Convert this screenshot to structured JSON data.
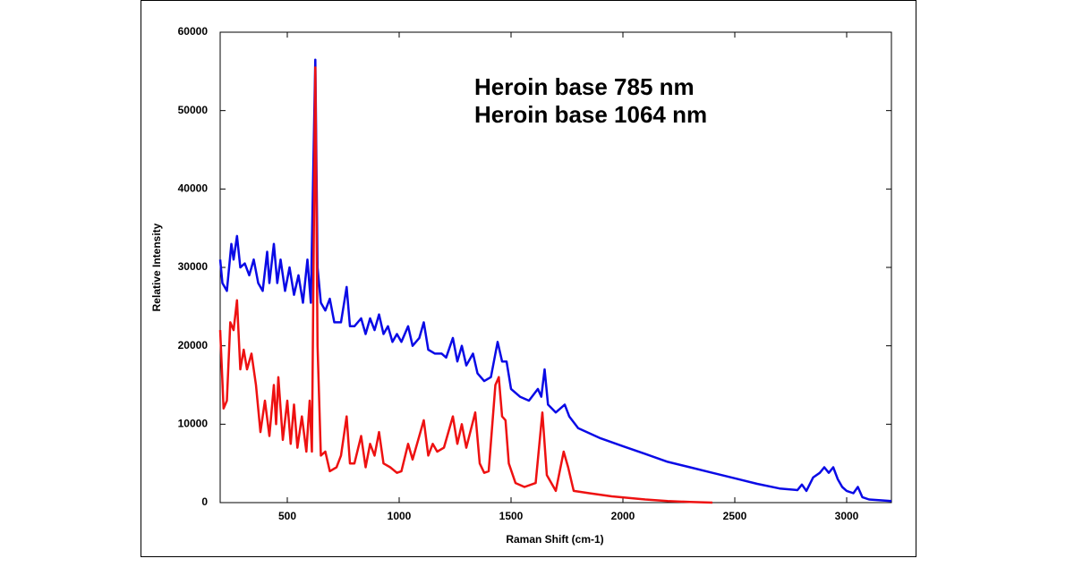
{
  "chart_data": {
    "type": "line",
    "xlabel": "Raman Shift (cm-1)",
    "ylabel": "Relative Intensity",
    "xlim": [
      200,
      3200
    ],
    "ylim": [
      0,
      60000
    ],
    "xticks": [
      500,
      1000,
      1500,
      2000,
      2500,
      3000
    ],
    "yticks": [
      0,
      10000,
      20000,
      30000,
      40000,
      50000,
      60000
    ],
    "grid": false,
    "series": [
      {
        "name": "Heroin base 785 nm",
        "color": "#0a0ae6",
        "x": [
          200,
          210,
          230,
          250,
          260,
          275,
          290,
          310,
          330,
          350,
          370,
          390,
          410,
          420,
          440,
          455,
          470,
          490,
          510,
          530,
          550,
          570,
          590,
          605,
          625,
          635,
          650,
          670,
          690,
          710,
          740,
          765,
          780,
          800,
          830,
          850,
          870,
          890,
          910,
          930,
          950,
          970,
          990,
          1010,
          1040,
          1060,
          1090,
          1110,
          1130,
          1160,
          1190,
          1210,
          1240,
          1260,
          1280,
          1300,
          1330,
          1350,
          1380,
          1410,
          1440,
          1460,
          1480,
          1500,
          1540,
          1580,
          1620,
          1635,
          1650,
          1665,
          1700,
          1740,
          1760,
          1800,
          1900,
          2000,
          2100,
          2200,
          2300,
          2400,
          2500,
          2600,
          2700,
          2780,
          2800,
          2820,
          2850,
          2880,
          2900,
          2920,
          2940,
          2960,
          2980,
          3000,
          3030,
          3050,
          3070,
          3100,
          3150,
          3200
        ],
        "values": [
          31000,
          28000,
          27000,
          33000,
          31000,
          34000,
          30000,
          30500,
          29000,
          31000,
          28000,
          27000,
          32000,
          28000,
          33000,
          28000,
          31000,
          27000,
          30000,
          26500,
          29000,
          25500,
          31000,
          25500,
          56500,
          30000,
          25500,
          24500,
          26000,
          23000,
          23000,
          27500,
          22500,
          22500,
          23500,
          21500,
          23500,
          22000,
          24000,
          21500,
          22500,
          20500,
          21500,
          20500,
          22500,
          20000,
          21000,
          23000,
          19500,
          19000,
          19000,
          18500,
          21000,
          18000,
          20000,
          17500,
          19000,
          16500,
          15500,
          16000,
          20500,
          18000,
          18000,
          14500,
          13500,
          13000,
          14500,
          13500,
          17000,
          12500,
          11500,
          12500,
          11000,
          9500,
          8200,
          7200,
          6200,
          5200,
          4500,
          3800,
          3100,
          2400,
          1800,
          1600,
          2300,
          1500,
          3200,
          3800,
          4500,
          3800,
          4500,
          3000,
          2000,
          1500,
          1200,
          2000,
          700,
          400,
          300,
          200
        ]
      },
      {
        "name": "Heroin base 1064 nm",
        "color": "#ee1111",
        "x": [
          200,
          215,
          230,
          245,
          260,
          275,
          290,
          305,
          320,
          340,
          360,
          380,
          400,
          420,
          440,
          450,
          460,
          480,
          500,
          515,
          530,
          545,
          565,
          585,
          600,
          610,
          625,
          635,
          650,
          670,
          690,
          720,
          740,
          765,
          780,
          800,
          830,
          850,
          870,
          890,
          910,
          930,
          960,
          990,
          1010,
          1040,
          1060,
          1090,
          1110,
          1130,
          1150,
          1170,
          1200,
          1240,
          1260,
          1280,
          1300,
          1340,
          1360,
          1380,
          1400,
          1430,
          1445,
          1460,
          1475,
          1490,
          1520,
          1560,
          1610,
          1640,
          1660,
          1700,
          1735,
          1755,
          1780,
          1850,
          1950,
          2100,
          2200,
          2300,
          2400
        ],
        "values": [
          22000,
          12000,
          13000,
          23000,
          22000,
          25800,
          17000,
          19500,
          17000,
          19000,
          15000,
          9000,
          13000,
          8500,
          15000,
          10000,
          16000,
          8000,
          13000,
          7500,
          12500,
          7000,
          11000,
          6500,
          13000,
          6500,
          55500,
          20000,
          6000,
          6500,
          4000,
          4500,
          6000,
          11000,
          5000,
          5000,
          8500,
          4500,
          7500,
          6000,
          9000,
          5000,
          4500,
          3800,
          4000,
          7500,
          5500,
          8500,
          10500,
          6000,
          7500,
          6500,
          7000,
          11000,
          7500,
          10000,
          7000,
          11500,
          5000,
          3800,
          4000,
          15000,
          16000,
          11000,
          10500,
          5000,
          2500,
          2000,
          2500,
          11500,
          3500,
          1500,
          6500,
          4500,
          1500,
          1200,
          800,
          400,
          200,
          80,
          0
        ]
      }
    ]
  }
}
